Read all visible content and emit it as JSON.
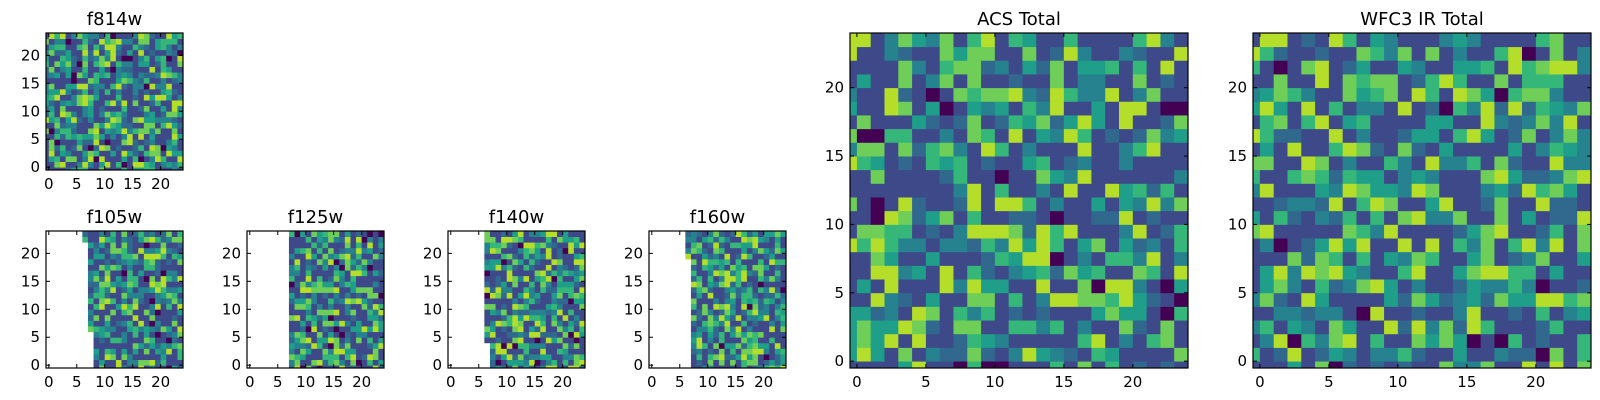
{
  "chart_data": {
    "type": "heatmap",
    "colormap": "viridis",
    "panels": [
      {
        "id": "f814w",
        "title": "f814w",
        "grid": 25,
        "xticks": [
          0,
          5,
          10,
          15,
          20
        ],
        "yticks": [
          0,
          5,
          10,
          15,
          20
        ],
        "masked_cols_max": -1,
        "seed": 11
      },
      {
        "id": "f105w",
        "title": "f105w",
        "grid": 25,
        "xticks": [
          0,
          5,
          10,
          15,
          20
        ],
        "yticks": [
          0,
          5,
          10,
          15,
          20
        ],
        "masked_cols_max": 8,
        "seed": 23
      },
      {
        "id": "f125w",
        "title": "f125w",
        "grid": 25,
        "xticks": [
          0,
          5,
          10,
          15,
          20
        ],
        "yticks": [
          0,
          5,
          10,
          15,
          20
        ],
        "masked_cols_max": 8,
        "seed": 37
      },
      {
        "id": "f140w",
        "title": "f140w",
        "grid": 25,
        "xticks": [
          0,
          5,
          10,
          15,
          20
        ],
        "yticks": [
          0,
          5,
          10,
          15,
          20
        ],
        "masked_cols_max": 7,
        "seed": 41
      },
      {
        "id": "f160w",
        "title": "f160w",
        "grid": 25,
        "xticks": [
          0,
          5,
          10,
          15,
          20
        ],
        "yticks": [
          0,
          5,
          10,
          15,
          20
        ],
        "masked_cols_max": 8,
        "seed": 53
      },
      {
        "id": "acs-total",
        "title": "ACS Total",
        "grid": 25,
        "xticks": [
          0,
          5,
          10,
          15,
          20
        ],
        "yticks": [
          0,
          5,
          10,
          15,
          20
        ],
        "masked_cols_max": -1,
        "seed": 67
      },
      {
        "id": "wfc3-ir-total",
        "title": "WFC3 IR Total",
        "grid": 25,
        "xticks": [
          0,
          5,
          10,
          15,
          20
        ],
        "yticks": [
          0,
          5,
          10,
          15,
          20
        ],
        "masked_cols_max": -1,
        "seed": 79
      }
    ]
  },
  "palette": [
    "#440154",
    "#482878",
    "#3e4989",
    "#31688e",
    "#26828e",
    "#1f9e89",
    "#35b779",
    "#6ece58",
    "#b5de2b",
    "#fde725"
  ]
}
